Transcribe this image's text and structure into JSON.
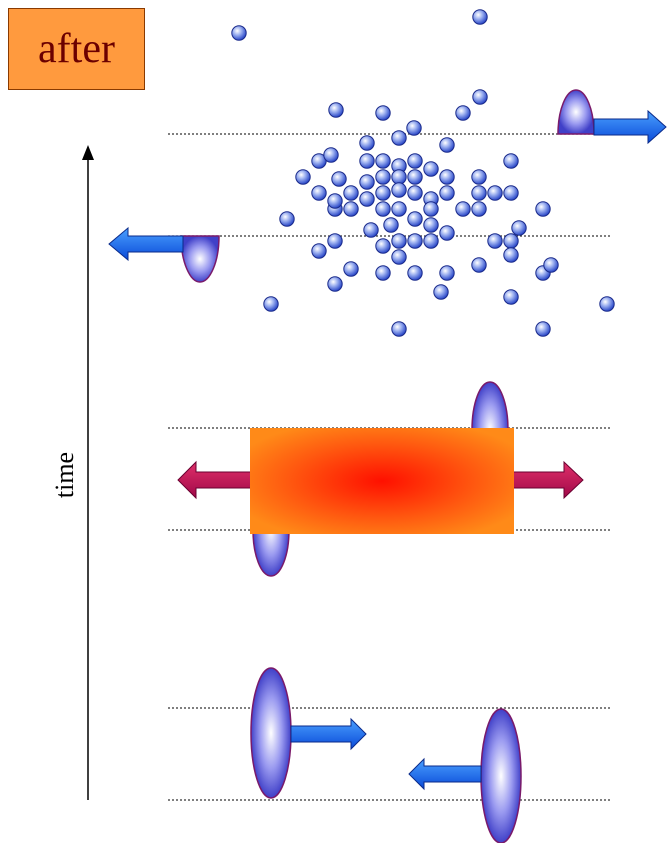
{
  "label_after": "after",
  "axis_label": "time",
  "colors": {
    "after_box": "#ff9a3e",
    "after_text": "#6b0000",
    "blue_arrow": "#1f6cf0",
    "red_arrow": "#c8145a",
    "ellipse_edge": "#7a1a6a",
    "ellipse_fill": "#4a4ad0",
    "particle": "#3c5ad6",
    "fireball_outer": "#ff7a10",
    "fireball_core": "#ff1200"
  },
  "icons": [
    "particle-sphere-icon",
    "ellipse-bunch-icon",
    "arrow-icon"
  ]
}
